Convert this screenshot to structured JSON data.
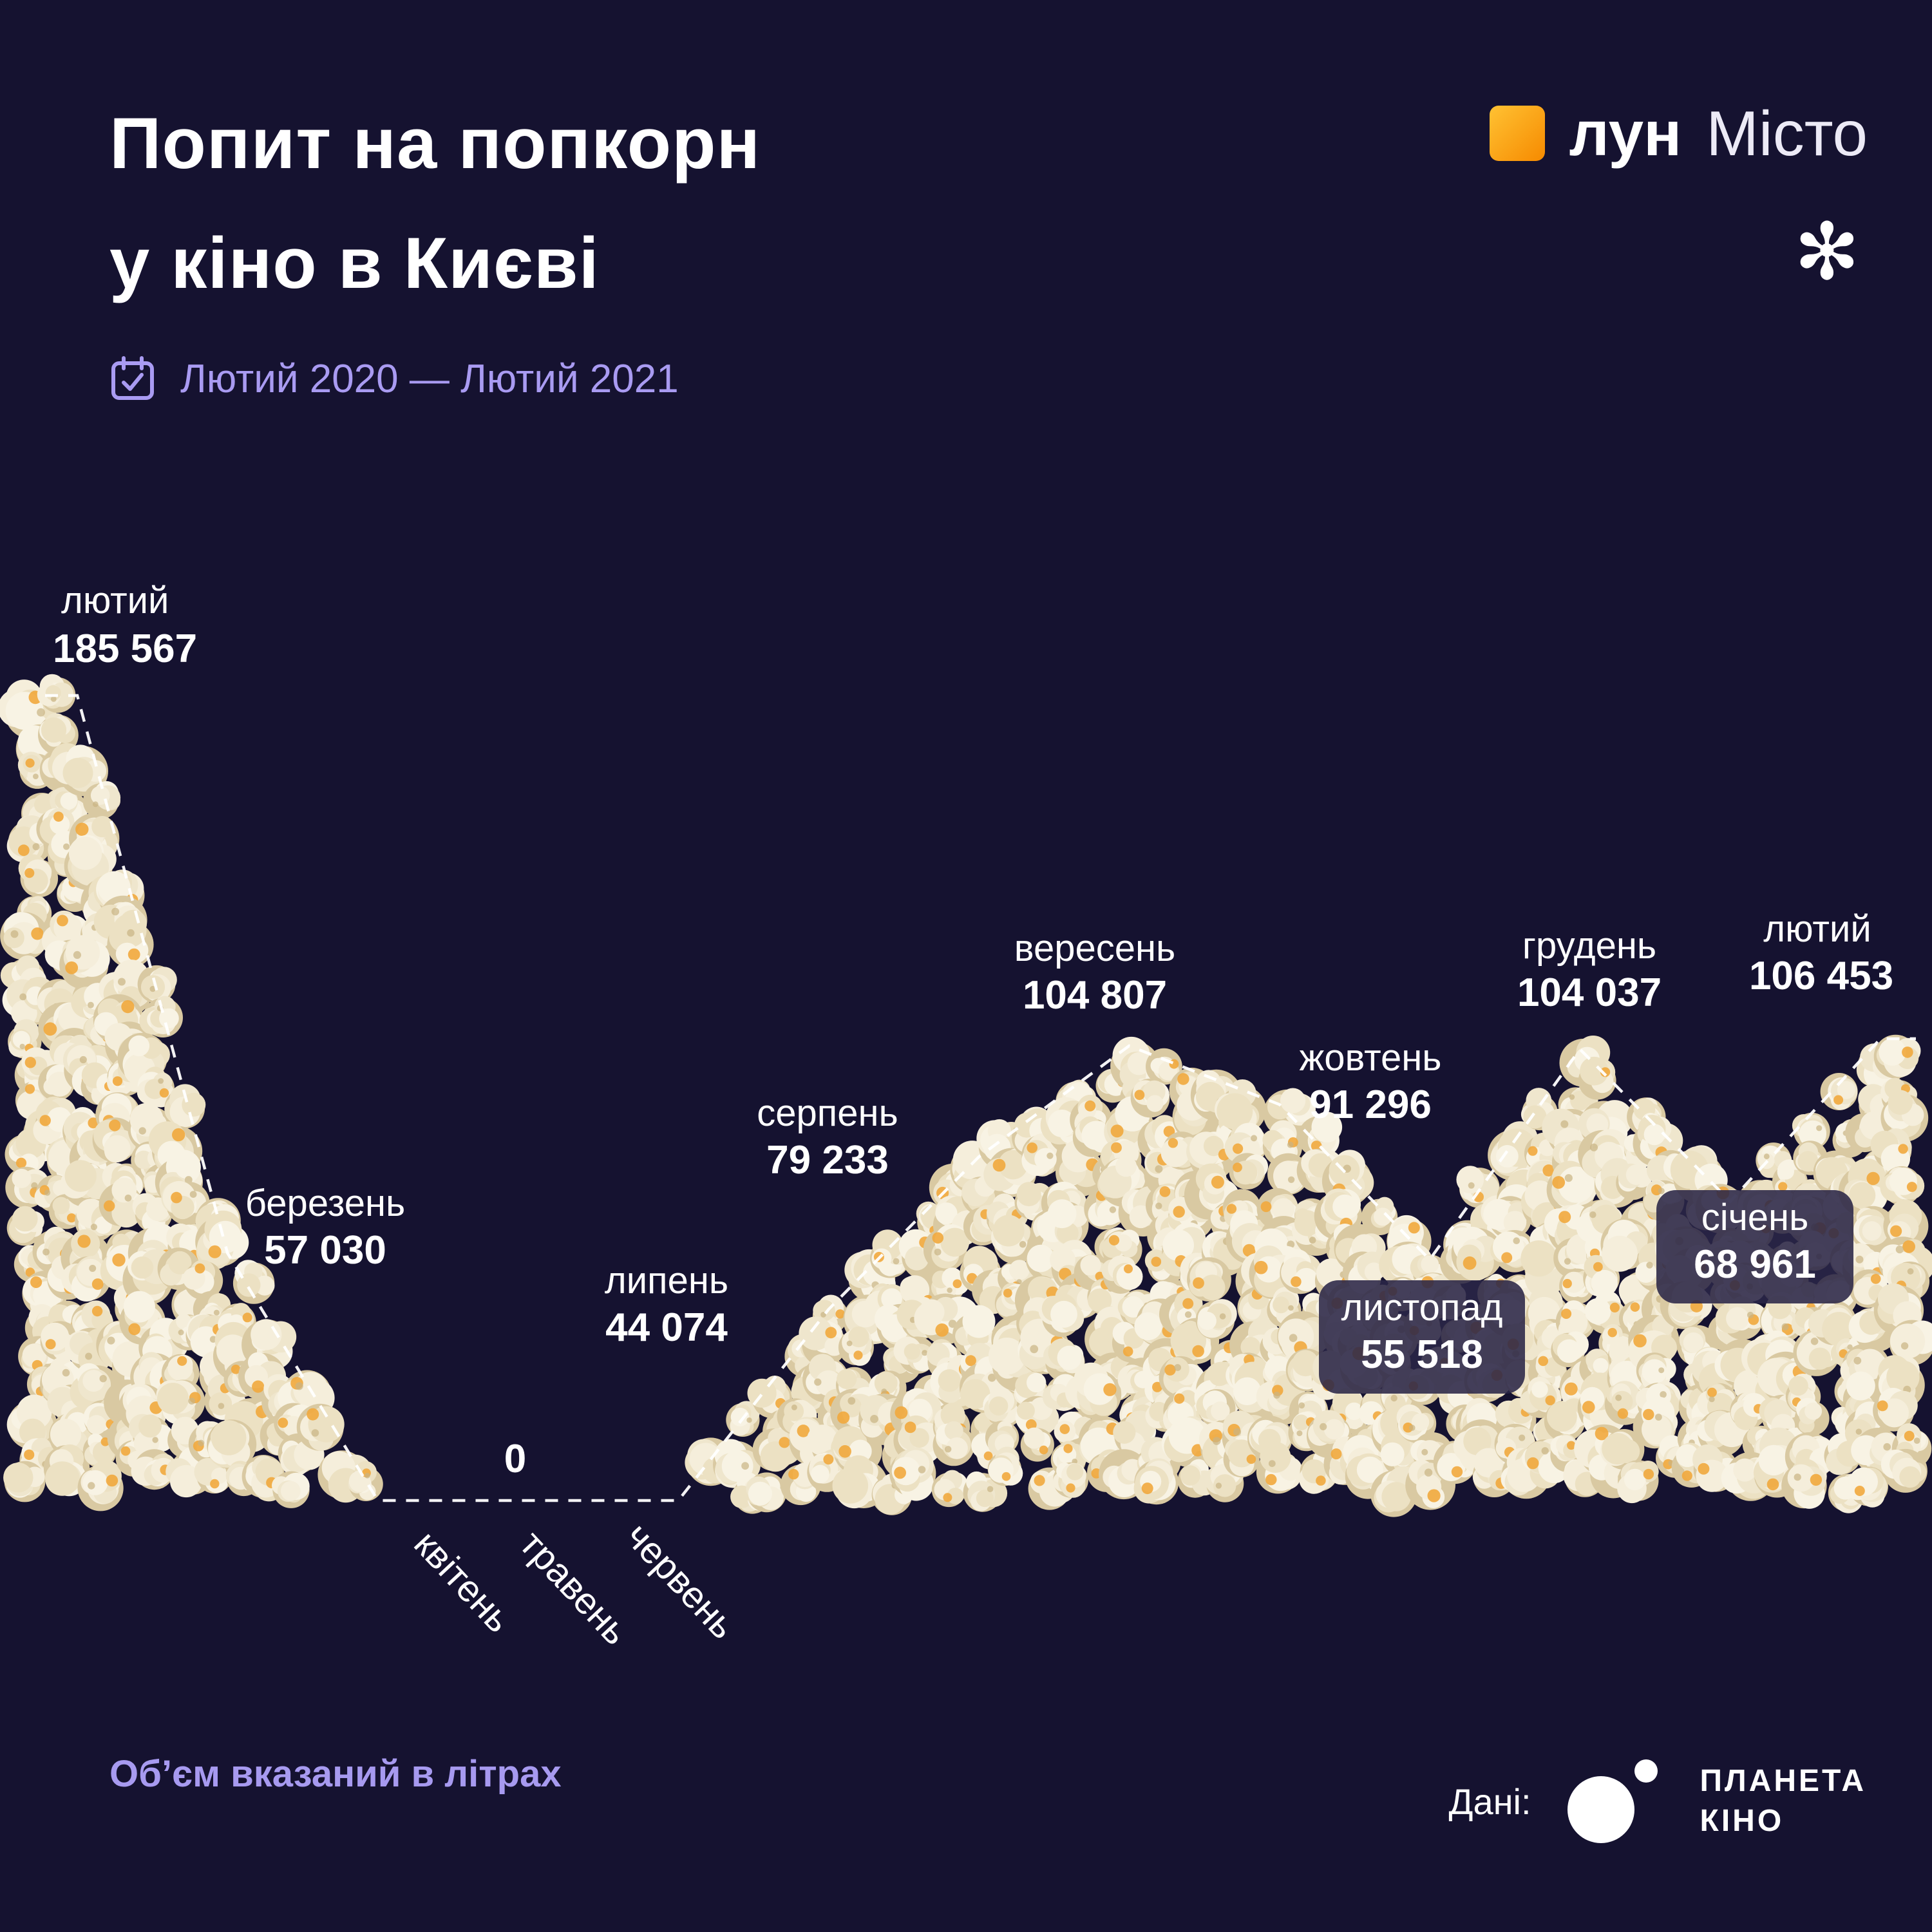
{
  "header": {
    "title_line1": "Попит на попкорн",
    "title_line2": "у кіно в Києві",
    "period": "Лютий 2020 — Лютий 2021"
  },
  "brand": {
    "logo_bold": "лун",
    "logo_light": "Місто",
    "asterisk_icon": "✻"
  },
  "footer": {
    "note": "Об’єм вказаний в літрах",
    "source_label": "Дані:",
    "source_line1": "ПЛАНЕТА",
    "source_line2": "КІНО"
  },
  "chart_data": {
    "type": "area",
    "title": "Попит на попкорн у кіно в Києві",
    "subtitle": "Лютий 2020 — Лютий 2021",
    "unit": "літри",
    "categories": [
      "лютий",
      "березень",
      "квітень",
      "травень",
      "червень",
      "липень",
      "серпень",
      "вересень",
      "жовтень",
      "листопад",
      "грудень",
      "січень",
      "лютий"
    ],
    "values": [
      185567,
      57030,
      0,
      0,
      0,
      44074,
      79233,
      104807,
      91296,
      55518,
      104037,
      68961,
      106453
    ],
    "value_labels": [
      "185 567",
      "57 030",
      "",
      "",
      "",
      "44 074",
      "79 233",
      "104 807",
      "91 296",
      "55 518",
      "104 037",
      "68 961",
      "106 453"
    ],
    "zero_label": "0",
    "ylim": [
      0,
      190000
    ],
    "grid": false,
    "legend": "none",
    "colors": {
      "background": "#151230",
      "popcorn": "#f2e9d3",
      "popcorn_shadow": "#d9c9a2",
      "accent_orange": "#f1a83d",
      "line": "#ffffff",
      "text": "#ffffff",
      "muted_purple": "#a99bf2"
    }
  }
}
